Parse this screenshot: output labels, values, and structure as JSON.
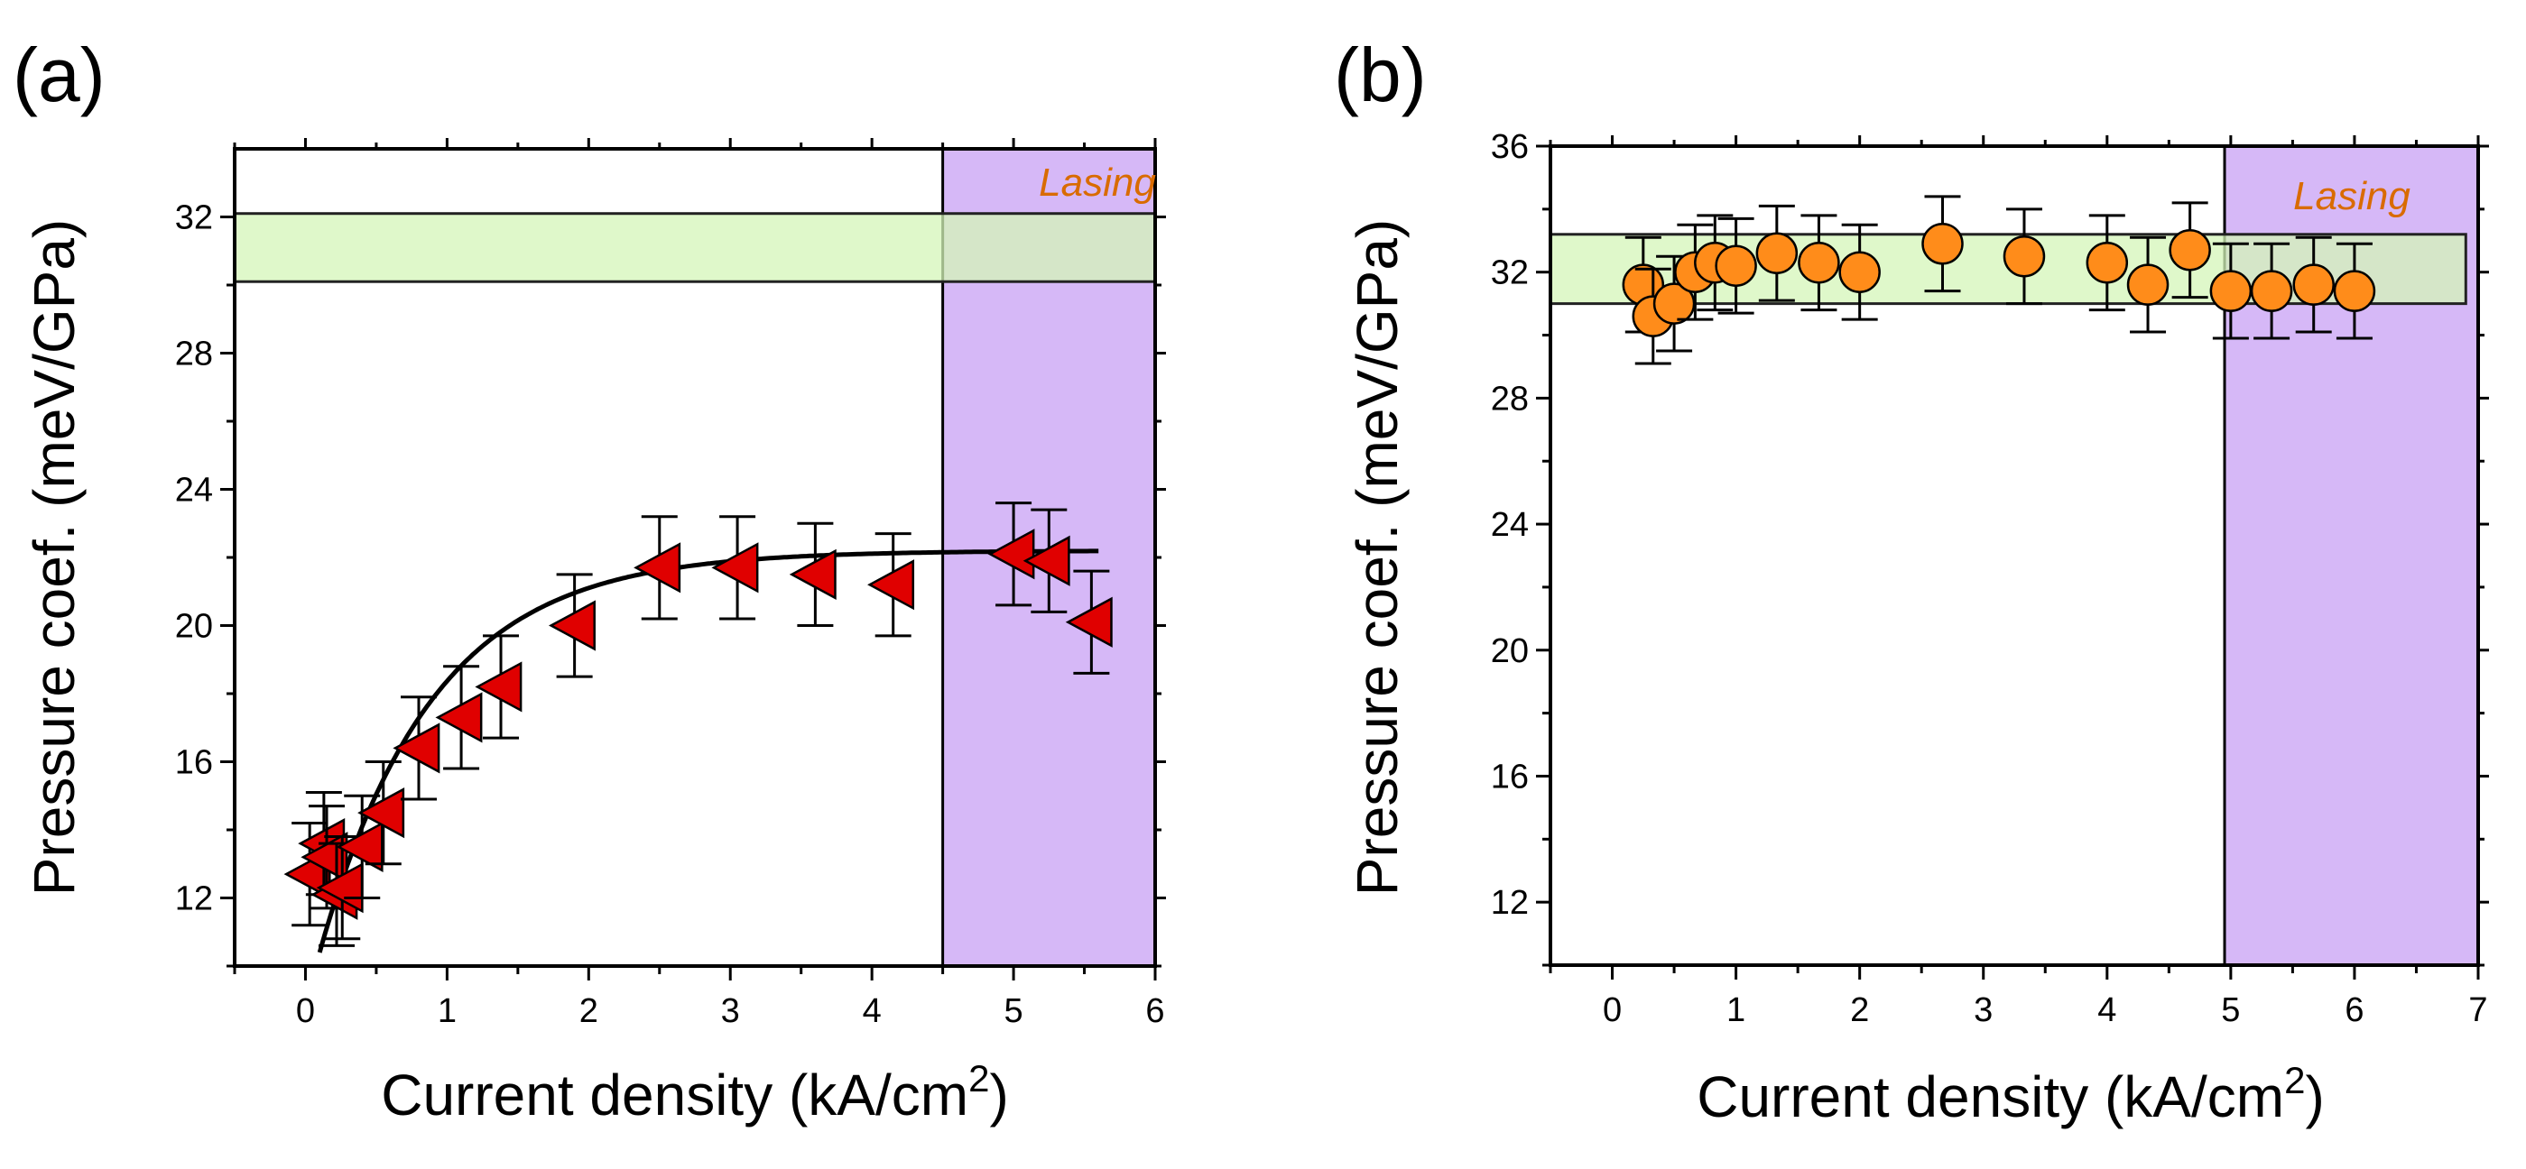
{
  "colors": {
    "band_fill": "#d4f5b8",
    "band_stroke": "#222222",
    "lasing_fill": "#d6b8f7",
    "marker_a_fill": "#e00000",
    "marker_b_fill": "#ff8c1a",
    "marker_stroke": "#000000",
    "lasing_text": "#d96b00",
    "fit_line": "#000000"
  },
  "chart_data": [
    {
      "panel_label": "(a)",
      "type": "scatter",
      "marker": "left-triangle",
      "xlabel": "Current density (kA/cm",
      "xlabel_sup": "2",
      "xlabel_end": ")",
      "ylabel": "Pressure coef. (meV/GPa)",
      "xlim": [
        -0.5,
        6
      ],
      "ylim": [
        10,
        34
      ],
      "xticks": [
        0,
        1,
        2,
        3,
        4,
        5,
        6
      ],
      "xtick_labels": [
        "0",
        "1",
        "2",
        "3",
        "4",
        "5",
        "6"
      ],
      "yticks": [
        12,
        16,
        20,
        24,
        28,
        32
      ],
      "ytick_labels": [
        "12",
        "16",
        "20",
        "24",
        "28",
        "32"
      ],
      "band": {
        "y_range": [
          30.1,
          32.1
        ],
        "x_range": [
          -0.5,
          6
        ]
      },
      "lasing_region": {
        "x_start": 4.5,
        "x_end": 6,
        "label": "Lasing"
      },
      "fit_curve": {
        "model": "exponential saturation",
        "equation_params": {
          "y_max": 22.2,
          "y0": 10.4,
          "decay": 0.8,
          "x0": 0.1
        },
        "x_range": [
          0.1,
          5.6
        ]
      },
      "series": [
        {
          "name": "pressure coefficient",
          "x": [
            0.03,
            0.13,
            0.15,
            0.22,
            0.26,
            0.4,
            0.55,
            0.8,
            1.1,
            1.38,
            1.9,
            2.5,
            3.05,
            3.6,
            4.15,
            5.0,
            5.25,
            5.55
          ],
          "y": [
            12.7,
            13.6,
            13.2,
            12.1,
            12.3,
            13.5,
            14.5,
            16.4,
            17.3,
            18.2,
            20.0,
            21.7,
            21.7,
            21.5,
            21.2,
            22.1,
            21.9,
            20.1
          ],
          "err": [
            1.5,
            1.5,
            1.5,
            1.5,
            1.5,
            1.5,
            1.5,
            1.5,
            1.5,
            1.5,
            1.5,
            1.5,
            1.5,
            1.5,
            1.5,
            1.5,
            1.5,
            1.5
          ]
        }
      ]
    },
    {
      "panel_label": "(b)",
      "type": "scatter",
      "marker": "circle",
      "xlabel": "Current density (kA/cm",
      "xlabel_sup": "2",
      "xlabel_end": ")",
      "ylabel": "Pressure coef. (meV/GPa)",
      "xlim": [
        -0.5,
        7
      ],
      "ylim": [
        10,
        36
      ],
      "xticks": [
        0,
        1,
        2,
        3,
        4,
        5,
        6,
        7
      ],
      "xtick_labels": [
        "0",
        "1",
        "2",
        "3",
        "4",
        "5",
        "6",
        "7"
      ],
      "yticks": [
        12,
        16,
        20,
        24,
        28,
        32,
        36
      ],
      "ytick_labels": [
        "12",
        "16",
        "20",
        "24",
        "28",
        "32",
        "36"
      ],
      "band": {
        "y_range": [
          31.0,
          33.2
        ],
        "x_range": [
          -0.5,
          6.9
        ]
      },
      "lasing_region": {
        "x_start": 4.95,
        "x_end": 7,
        "label": "Lasing"
      },
      "series": [
        {
          "name": "pressure coefficient",
          "x": [
            0.25,
            0.33,
            0.5,
            0.67,
            0.83,
            1.0,
            1.33,
            1.67,
            2.0,
            2.67,
            3.33,
            4.0,
            4.33,
            4.67,
            5.0,
            5.33,
            5.67,
            6.0
          ],
          "y": [
            31.6,
            30.6,
            31.0,
            32.0,
            32.3,
            32.2,
            32.6,
            32.3,
            32.0,
            32.9,
            32.5,
            32.3,
            31.6,
            32.7,
            31.4,
            31.4,
            31.6,
            31.4
          ],
          "err": [
            1.5,
            1.5,
            1.5,
            1.5,
            1.5,
            1.5,
            1.5,
            1.5,
            1.5,
            1.5,
            1.5,
            1.5,
            1.5,
            1.5,
            1.5,
            1.5,
            1.5,
            1.5
          ]
        }
      ]
    }
  ]
}
